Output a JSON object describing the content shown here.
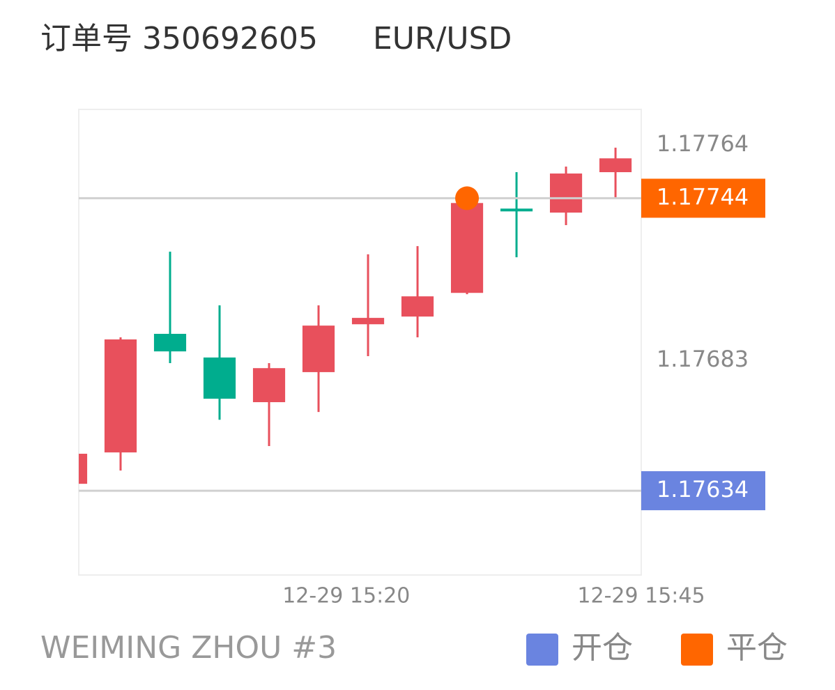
{
  "chart_data": {
    "type": "candlestick",
    "title": "订单号 350692605",
    "subtitle": "EUR/USD",
    "account": "WEIMING ZHOU #3",
    "categories": [
      null,
      null,
      null,
      null,
      null,
      null,
      null,
      null,
      null,
      null,
      null,
      null
    ],
    "open": [
      1.176366,
      1.176484,
      1.17693,
      1.176841,
      1.176673,
      1.176786,
      1.176966,
      1.176995,
      1.177084,
      1.177401,
      1.177386,
      1.177538
    ],
    "high": [
      1.176479,
      1.176917,
      1.177239,
      1.177037,
      1.17682,
      1.177037,
      1.177229,
      1.17726,
      1.177422,
      1.177538,
      1.177559,
      1.17763
    ],
    "low": [
      1.176366,
      1.176416,
      1.17682,
      1.176607,
      1.176508,
      1.176636,
      1.176846,
      1.176917,
      1.177079,
      1.177218,
      1.177339,
      1.177441
    ],
    "close": [
      1.176479,
      1.176909,
      1.176864,
      1.176686,
      1.176801,
      1.176961,
      1.17699,
      1.177071,
      1.177422,
      1.177394,
      1.177533,
      1.17759
    ],
    "up_color": "#e8505c",
    "down_color": "#00ad8e",
    "xlim": [
      0.155,
      11.52
    ],
    "xticks": [
      {
        "value": 5.56,
        "label": "12-29 15:20"
      },
      {
        "value": 11.52,
        "label": "12-29 15:45"
      }
    ],
    "ylim": [
      1.176023,
      1.177774
    ],
    "yticks": [
      1.17683,
      1.17764
    ],
    "levels": [
      {
        "name": "开仓",
        "value": 1.17634,
        "color": "#6a84e0"
      },
      {
        "name": "平仓",
        "value": 1.17744,
        "color": "#ff6600"
      }
    ],
    "close_marker": {
      "index": 8,
      "value": 1.17744,
      "color": "#ff6600"
    }
  }
}
